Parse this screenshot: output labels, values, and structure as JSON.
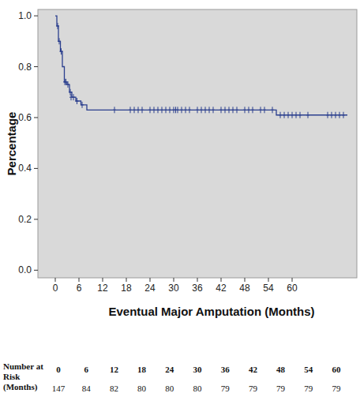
{
  "chart_data": {
    "type": "line",
    "y_label": "Percentage",
    "x_label": "Eventual Major Amputation (Months)",
    "xlim": [
      -4.4,
      76.4
    ],
    "xticks": [
      0,
      6,
      12,
      18,
      24,
      30,
      36,
      42,
      48,
      54,
      60
    ],
    "ylim": [
      -0.03,
      1.025
    ],
    "yticks": [
      {
        "value": 0,
        "label": "0.0"
      },
      0.2,
      0.4,
      0.6,
      0.8,
      {
        "value": 1,
        "label": "1.0"
      }
    ],
    "grid": false,
    "series": [
      {
        "type": "line",
        "line_style": "step",
        "color": "#2b3f8e",
        "x": [
          0,
          0.4,
          0.8,
          1.3,
          1.8,
          2.3,
          3.0,
          3.6,
          4.2,
          5.2,
          6.5,
          8,
          56,
          74
        ],
        "values": [
          1.0,
          0.96,
          0.9,
          0.86,
          0.8,
          0.74,
          0.73,
          0.7,
          0.68,
          0.665,
          0.65,
          0.63,
          0.61,
          0.61
        ]
      },
      {
        "type": "scatter",
        "marker": "plus",
        "color": "#2b3f8e",
        "x": [
          0.6,
          1.0,
          1.5,
          2.4,
          2.7,
          3.2,
          3.8,
          4.0,
          4.6,
          5.5,
          6.8,
          15,
          19,
          20,
          21,
          22,
          24,
          25,
          26,
          27,
          28,
          29,
          30,
          30.5,
          31,
          32,
          33,
          34,
          36,
          37,
          38,
          39,
          40,
          42,
          43,
          44,
          45,
          46,
          48,
          49,
          50,
          52,
          53,
          55,
          57,
          58,
          59,
          60,
          61,
          62,
          64,
          69,
          70,
          71,
          72,
          73
        ],
        "values": [
          0.96,
          0.9,
          0.86,
          0.74,
          0.74,
          0.73,
          0.7,
          0.68,
          0.68,
          0.665,
          0.65,
          0.63,
          0.63,
          0.63,
          0.63,
          0.63,
          0.63,
          0.63,
          0.63,
          0.63,
          0.63,
          0.63,
          0.63,
          0.63,
          0.63,
          0.63,
          0.63,
          0.63,
          0.63,
          0.63,
          0.63,
          0.63,
          0.63,
          0.63,
          0.63,
          0.63,
          0.63,
          0.63,
          0.63,
          0.63,
          0.63,
          0.63,
          0.63,
          0.63,
          0.61,
          0.61,
          0.61,
          0.61,
          0.61,
          0.61,
          0.61,
          0.61,
          0.61,
          0.61,
          0.61,
          0.61
        ]
      }
    ],
    "risk_table": {
      "label": [
        "Number at",
        "Risk",
        "(Months)"
      ],
      "times": [
        0,
        6,
        12,
        18,
        24,
        30,
        36,
        42,
        48,
        54,
        60
      ],
      "counts": [
        147,
        84,
        82,
        80,
        80,
        80,
        79,
        79,
        79,
        79,
        79
      ]
    }
  }
}
